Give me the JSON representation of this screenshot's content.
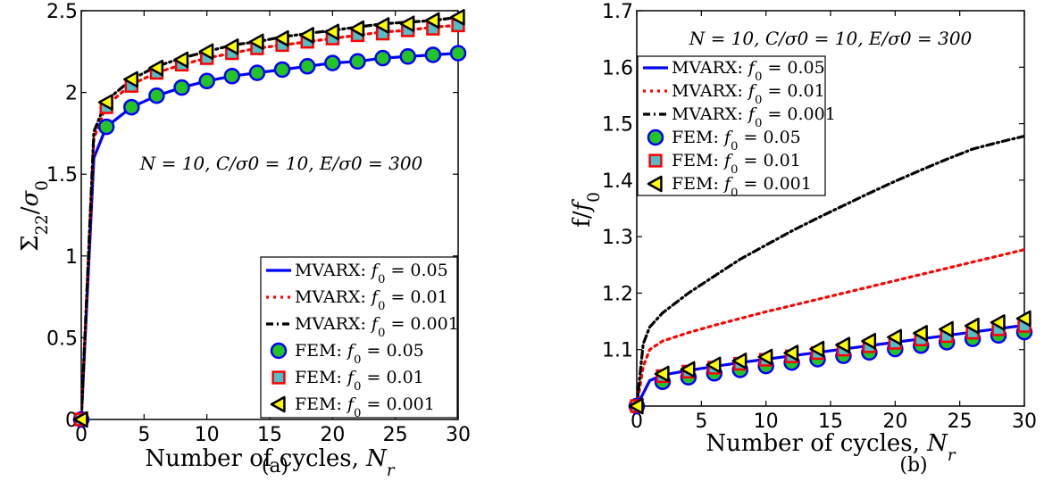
{
  "chart_data": [
    {
      "type": "line",
      "panel_label": "(a)",
      "xlabel": "Number of cycles, N_r",
      "ylabel": "Σ22/σ0",
      "xlim": [
        0,
        30
      ],
      "ylim": [
        0,
        2.5
      ],
      "xticks": [
        "0",
        "5",
        "10",
        "15",
        "20",
        "25",
        "30"
      ],
      "yticks": [
        "0",
        "0.5",
        "1",
        "1.5",
        "2",
        "2.5"
      ],
      "annotation": "N = 10,  C/σ0 = 10,  E/σ0 = 300",
      "legend_position": "lower-right",
      "series": [
        {
          "name": "MVARX: f0 = 0.05",
          "style": "solid",
          "color": "#0000ff",
          "x": [
            0,
            1,
            2,
            4,
            6,
            8,
            10,
            12,
            14,
            16,
            18,
            20,
            22,
            24,
            26,
            28,
            30
          ],
          "y": [
            0,
            1.6,
            1.79,
            1.91,
            1.98,
            2.03,
            2.07,
            2.1,
            2.12,
            2.14,
            2.16,
            2.18,
            2.19,
            2.21,
            2.22,
            2.23,
            2.24
          ]
        },
        {
          "name": "MVARX: f0 = 0.01",
          "style": "dotted",
          "color": "#ff0000",
          "x": [
            0,
            1,
            2,
            4,
            6,
            8,
            10,
            12,
            14,
            16,
            18,
            20,
            22,
            24,
            26,
            28,
            30
          ],
          "y": [
            0,
            1.72,
            1.92,
            2.05,
            2.12,
            2.17,
            2.21,
            2.24,
            2.27,
            2.29,
            2.31,
            2.33,
            2.35,
            2.37,
            2.38,
            2.4,
            2.41
          ]
        },
        {
          "name": "MVARX: f0 = 0.001",
          "style": "dashdot",
          "color": "#000000",
          "x": [
            0,
            1,
            2,
            4,
            6,
            8,
            10,
            12,
            14,
            16,
            18,
            20,
            22,
            24,
            26,
            28,
            30
          ],
          "y": [
            0,
            1.76,
            1.95,
            2.08,
            2.16,
            2.21,
            2.25,
            2.29,
            2.31,
            2.34,
            2.36,
            2.38,
            2.4,
            2.42,
            2.43,
            2.44,
            2.46
          ]
        },
        {
          "name": "FEM: f0 = 0.05",
          "marker": "circle",
          "color": "#0000ff",
          "fill": "#22c522",
          "x": [
            0,
            2,
            4,
            6,
            8,
            10,
            12,
            14,
            16,
            18,
            20,
            22,
            24,
            26,
            28,
            30
          ],
          "y": [
            0,
            1.79,
            1.91,
            1.98,
            2.03,
            2.07,
            2.1,
            2.12,
            2.14,
            2.16,
            2.18,
            2.19,
            2.21,
            2.22,
            2.23,
            2.24
          ]
        },
        {
          "name": "FEM: f0 = 0.01",
          "marker": "square",
          "color": "#ff0000",
          "fill": "#4fc0c8",
          "x": [
            0,
            2,
            4,
            6,
            8,
            10,
            12,
            14,
            16,
            18,
            20,
            22,
            24,
            26,
            28,
            30
          ],
          "y": [
            0,
            1.91,
            2.04,
            2.12,
            2.17,
            2.21,
            2.24,
            2.27,
            2.29,
            2.31,
            2.33,
            2.35,
            2.36,
            2.38,
            2.39,
            2.41
          ]
        },
        {
          "name": "FEM: f0 = 0.001",
          "marker": "triangle-left",
          "color": "#000000",
          "fill": "#ffff00",
          "x": [
            0,
            2,
            4,
            6,
            8,
            10,
            12,
            14,
            16,
            18,
            20,
            22,
            24,
            26,
            28,
            30
          ],
          "y": [
            0,
            1.94,
            2.08,
            2.15,
            2.2,
            2.25,
            2.28,
            2.31,
            2.33,
            2.35,
            2.37,
            2.39,
            2.41,
            2.42,
            2.44,
            2.46
          ]
        }
      ]
    },
    {
      "type": "line",
      "panel_label": "(b)",
      "xlabel": "Number of cycles, N_r",
      "ylabel": "f/f0",
      "xlim": [
        0,
        30
      ],
      "ylim": [
        1.0,
        1.7
      ],
      "xticks": [
        "0",
        "5",
        "10",
        "15",
        "20",
        "25",
        "30"
      ],
      "yticks": [
        "1.1",
        "1.2",
        "1.3",
        "1.4",
        "1.5",
        "1.6",
        "1.7"
      ],
      "annotation": "N = 10,  C/σ0 = 10,  E/σ0 = 300",
      "legend_position": "upper-left",
      "series": [
        {
          "name": "MVARX: f0 = 0.05",
          "style": "solid",
          "color": "#0000ff",
          "x": [
            0,
            1,
            2,
            4,
            6,
            8,
            10,
            12,
            14,
            16,
            18,
            20,
            22,
            24,
            26,
            28,
            30
          ],
          "y": [
            1.0,
            1.045,
            1.055,
            1.063,
            1.07,
            1.077,
            1.083,
            1.089,
            1.095,
            1.101,
            1.107,
            1.113,
            1.119,
            1.125,
            1.131,
            1.137,
            1.143
          ]
        },
        {
          "name": "MVARX: f0 = 0.01",
          "style": "dotted",
          "color": "#ff0000",
          "x": [
            0,
            0.5,
            1,
            2,
            4,
            6,
            8,
            10,
            12,
            14,
            16,
            18,
            20,
            22,
            24,
            26,
            28,
            30
          ],
          "y": [
            1.0,
            1.07,
            1.1,
            1.115,
            1.13,
            1.143,
            1.155,
            1.167,
            1.178,
            1.189,
            1.2,
            1.211,
            1.222,
            1.233,
            1.244,
            1.255,
            1.266,
            1.277
          ]
        },
        {
          "name": "MVARX: f0 = 0.001",
          "style": "dashdot",
          "color": "#000000",
          "x": [
            0,
            0.5,
            1,
            2,
            4,
            6,
            8,
            10,
            12,
            14,
            16,
            18,
            20,
            22,
            24,
            26,
            28,
            30
          ],
          "y": [
            1.0,
            1.11,
            1.14,
            1.165,
            1.2,
            1.23,
            1.26,
            1.285,
            1.31,
            1.333,
            1.355,
            1.377,
            1.398,
            1.418,
            1.437,
            1.455,
            1.467,
            1.478
          ]
        },
        {
          "name": "FEM: f0 = 0.05",
          "marker": "circle",
          "color": "#0000ff",
          "fill": "#22c522",
          "x": [
            0,
            2,
            4,
            6,
            8,
            10,
            12,
            14,
            16,
            18,
            20,
            22,
            24,
            26,
            28,
            30
          ],
          "y": [
            1.0,
            1.043,
            1.051,
            1.058,
            1.064,
            1.071,
            1.077,
            1.083,
            1.089,
            1.095,
            1.101,
            1.107,
            1.113,
            1.119,
            1.125,
            1.131
          ]
        },
        {
          "name": "FEM: f0 = 0.01",
          "marker": "square",
          "color": "#ff0000",
          "fill": "#4fc0c8",
          "x": [
            0,
            2,
            4,
            6,
            8,
            10,
            12,
            14,
            16,
            18,
            20,
            22,
            24,
            26,
            28,
            30
          ],
          "y": [
            1.0,
            1.053,
            1.061,
            1.068,
            1.075,
            1.082,
            1.088,
            1.094,
            1.1,
            1.106,
            1.112,
            1.118,
            1.124,
            1.13,
            1.136,
            1.142
          ]
        },
        {
          "name": "FEM: f0 = 0.001",
          "marker": "triangle-left",
          "color": "#000000",
          "fill": "#ffff00",
          "x": [
            0,
            2,
            4,
            6,
            8,
            10,
            12,
            14,
            16,
            18,
            20,
            22,
            24,
            26,
            28,
            30
          ],
          "y": [
            1.0,
            1.057,
            1.065,
            1.073,
            1.08,
            1.087,
            1.094,
            1.101,
            1.108,
            1.115,
            1.122,
            1.129,
            1.136,
            1.142,
            1.148,
            1.155
          ]
        }
      ]
    }
  ]
}
